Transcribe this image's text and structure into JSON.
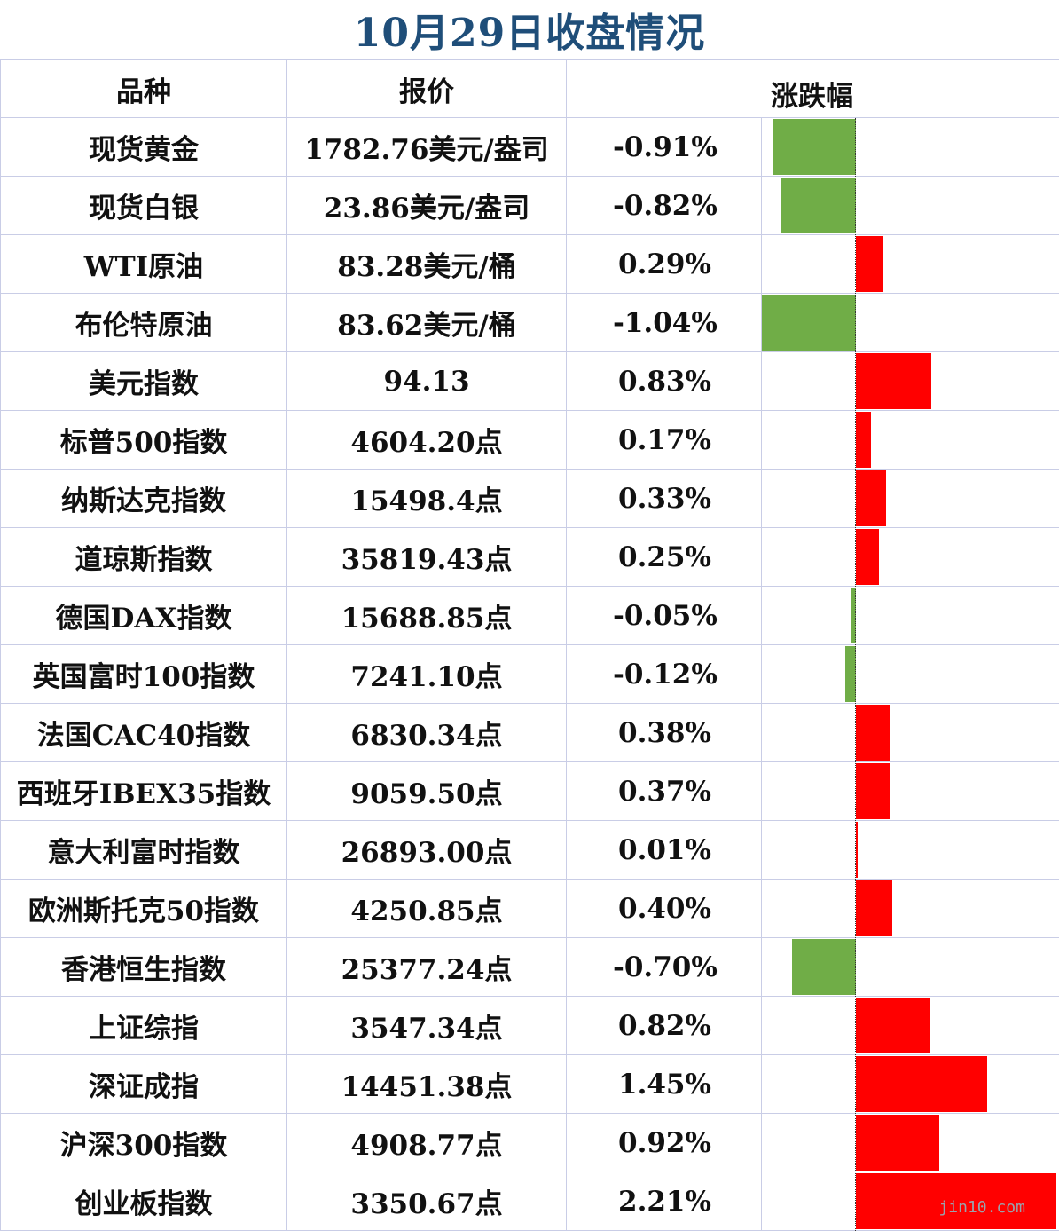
{
  "title": "10月29日收盘情况",
  "headers": {
    "name": "品种",
    "price": "报价",
    "change": "涨跌幅"
  },
  "colors": {
    "up": "#ff0000",
    "down": "#70ad47",
    "title": "#1f4e79"
  },
  "chart_data": {
    "type": "table",
    "max_abs_change": 2.21,
    "rows": [
      {
        "name": "现货黄金",
        "price": "1782.76美元/盎司",
        "change": "-0.91%",
        "value": -0.91
      },
      {
        "name": "现货白银",
        "price": "23.86美元/盎司",
        "change": "-0.82%",
        "value": -0.82
      },
      {
        "name": "WTI原油",
        "price": "83.28美元/桶",
        "change": "0.29%",
        "value": 0.29
      },
      {
        "name": "布伦特原油",
        "price": "83.62美元/桶",
        "change": "-1.04%",
        "value": -1.04
      },
      {
        "name": "美元指数",
        "price": "94.13",
        "change": "0.83%",
        "value": 0.83
      },
      {
        "name": "标普500指数",
        "price": "4604.20点",
        "change": "0.17%",
        "value": 0.17
      },
      {
        "name": "纳斯达克指数",
        "price": "15498.4点",
        "change": "0.33%",
        "value": 0.33
      },
      {
        "name": "道琼斯指数",
        "price": "35819.43点",
        "change": "0.25%",
        "value": 0.25
      },
      {
        "name": "德国DAX指数",
        "price": "15688.85点",
        "change": "-0.05%",
        "value": -0.05
      },
      {
        "name": "英国富时100指数",
        "price": "7241.10点",
        "change": "-0.12%",
        "value": -0.12
      },
      {
        "name": "法国CAC40指数",
        "price": "6830.34点",
        "change": "0.38%",
        "value": 0.38
      },
      {
        "name": "西班牙IBEX35指数",
        "price": "9059.50点",
        "change": "0.37%",
        "value": 0.37
      },
      {
        "name": "意大利富时指数",
        "price": "26893.00点",
        "change": "0.01%",
        "value": 0.01
      },
      {
        "name": "欧洲斯托克50指数",
        "price": "4250.85点",
        "change": "0.40%",
        "value": 0.4
      },
      {
        "name": "香港恒生指数",
        "price": "25377.24点",
        "change": "-0.70%",
        "value": -0.7
      },
      {
        "name": "上证综指",
        "price": "3547.34点",
        "change": "0.82%",
        "value": 0.82
      },
      {
        "name": "深证成指",
        "price": "14451.38点",
        "change": "1.45%",
        "value": 1.45
      },
      {
        "name": "沪深300指数",
        "price": "4908.77点",
        "change": "0.92%",
        "value": 0.92
      },
      {
        "name": "创业板指数",
        "price": "3350.67点",
        "change": "2.21%",
        "value": 2.21
      }
    ]
  },
  "watermark": "jin10.com"
}
